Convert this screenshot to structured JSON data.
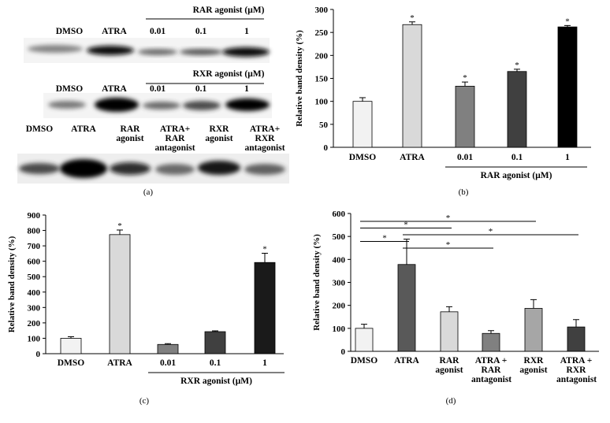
{
  "blots": {
    "caption": "(a)",
    "rows": [
      {
        "header": "RAR agonist (μM)",
        "labels": [
          "DMSO",
          "ATRA",
          "0.01",
          "0.1",
          "1"
        ]
      },
      {
        "header": "RXR agonist (μM)",
        "labels": [
          "DMSO",
          "ATRA",
          "0.01",
          "0.1",
          "1"
        ]
      },
      {
        "labels": [
          "DMSO",
          "ATRA",
          "RAR agonist",
          "ATRA+ RAR antagonist",
          "RXR agonist",
          "ATRA+ RXR antagonist"
        ]
      }
    ]
  },
  "chart_data": [
    {
      "type": "bar",
      "caption": "(b)",
      "ylabel": "Relative band density (%)",
      "categories": [
        "DMSO",
        "ATRA",
        "0.01",
        "0.1",
        "1"
      ],
      "values": [
        100,
        267,
        133,
        165,
        262
      ],
      "errors": [
        8,
        6,
        9,
        5,
        3
      ],
      "colors": [
        "#f2f2f2",
        "#d9d9d9",
        "#808080",
        "#404040",
        "#000000"
      ],
      "significance": [
        null,
        "*",
        "*",
        "*",
        "*"
      ],
      "group": {
        "label": "RAR agonist (μM)",
        "start": 2,
        "end": 4
      },
      "ylim": [
        0,
        300
      ],
      "yticks": [
        0,
        50,
        100,
        150,
        200,
        250,
        300
      ]
    },
    {
      "type": "bar",
      "caption": "(c)",
      "ylabel": "Relative band density (%)",
      "categories": [
        "DMSO",
        "ATRA",
        "0.01",
        "0.1",
        "1"
      ],
      "values": [
        100,
        773,
        60,
        143,
        592
      ],
      "errors": [
        10,
        30,
        5,
        5,
        60
      ],
      "colors": [
        "#f2f2f2",
        "#d9d9d9",
        "#808080",
        "#404040",
        "#1a1a1a"
      ],
      "significance": [
        null,
        "*",
        null,
        null,
        "*"
      ],
      "group": {
        "label": "RXR agonist (μM)",
        "start": 2,
        "end": 4
      },
      "ylim": [
        0,
        900
      ],
      "yticks": [
        0,
        100,
        200,
        300,
        400,
        500,
        600,
        700,
        800,
        900
      ]
    },
    {
      "type": "bar",
      "caption": "(d)",
      "ylabel": "Relative band density (%)",
      "categories": [
        "DMSO",
        "ATRA",
        "RAR agonist",
        "ATRA + RAR antagonist",
        "RXR agonist",
        "ATRA + RXR antagonist"
      ],
      "values": [
        100,
        378,
        172,
        78,
        187,
        106
      ],
      "errors": [
        18,
        110,
        22,
        12,
        38,
        32
      ],
      "colors": [
        "#f2f2f2",
        "#595959",
        "#d9d9d9",
        "#808080",
        "#a6a6a6",
        "#404040"
      ],
      "comparisons": [
        {
          "categories": [
            0,
            4
          ],
          "label": "*"
        },
        {
          "categories": [
            0,
            2
          ],
          "label": "*"
        },
        {
          "categories": [
            1,
            5
          ],
          "label": "*"
        },
        {
          "categories": [
            0,
            1
          ],
          "label": "*"
        },
        {
          "categories": [
            1,
            3
          ],
          "label": "*"
        }
      ],
      "ylim": [
        0,
        600
      ],
      "yticks": [
        0,
        100,
        200,
        300,
        400,
        500,
        600
      ]
    }
  ]
}
